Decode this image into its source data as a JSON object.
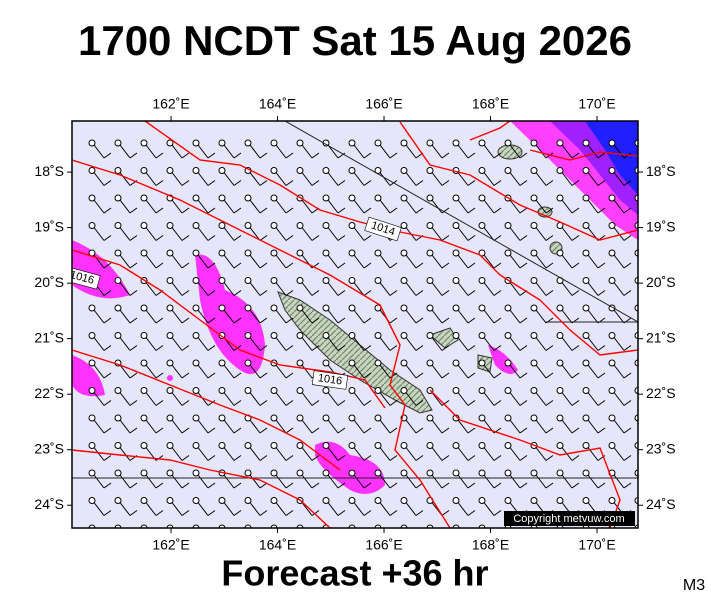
{
  "header": {
    "title": "1700 NCDT Sat 15 Aug 2026"
  },
  "map": {
    "lon_range": [
      160.14,
      170.77
    ],
    "lat_range": [
      -24.41,
      -17.08
    ],
    "lon_ticks": [
      {
        "value": 162,
        "label": "162˚E"
      },
      {
        "value": 164,
        "label": "164˚E"
      },
      {
        "value": 166,
        "label": "166˚E"
      },
      {
        "value": 168,
        "label": "168˚E"
      },
      {
        "value": 170,
        "label": "170˚E"
      }
    ],
    "lat_ticks": [
      {
        "value": -18,
        "label": "18˚S"
      },
      {
        "value": -19,
        "label": "19˚S"
      },
      {
        "value": -20,
        "label": "20˚S"
      },
      {
        "value": -21,
        "label": "21˚S"
      },
      {
        "value": -22,
        "label": "22˚S"
      },
      {
        "value": -23,
        "label": "23˚S"
      },
      {
        "value": -24,
        "label": "24˚S"
      }
    ],
    "isobar_labels": [
      "1014",
      "1016",
      "1016"
    ],
    "copyright": "Copyright metvuw.com"
  },
  "footer": {
    "forecast": "Forecast +36 hr",
    "model": "M3"
  }
}
